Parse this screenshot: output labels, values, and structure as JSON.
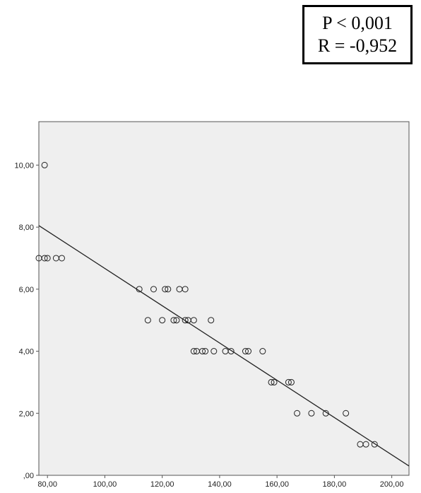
{
  "stats": {
    "p_line": "P < 0,001",
    "r_line": "R = -0,952"
  },
  "chart_data": {
    "type": "scatter",
    "title": "",
    "xlabel": "",
    "ylabel": "",
    "xlim": [
      77,
      206
    ],
    "ylim": [
      0,
      11.4
    ],
    "grid": false,
    "legend": "none",
    "x_ticks": [
      {
        "value": 80,
        "label": "80,00"
      },
      {
        "value": 100,
        "label": "100,00"
      },
      {
        "value": 120,
        "label": "120,00"
      },
      {
        "value": 140,
        "label": "140,00"
      },
      {
        "value": 160,
        "label": "160,00"
      },
      {
        "value": 180,
        "label": "180,00"
      },
      {
        "value": 200,
        "label": "200,00"
      }
    ],
    "y_ticks": [
      {
        "value": 0,
        "label": ",00"
      },
      {
        "value": 2,
        "label": "2,00"
      },
      {
        "value": 4,
        "label": "4,00"
      },
      {
        "value": 6,
        "label": "6,00"
      },
      {
        "value": 8,
        "label": "8,00"
      },
      {
        "value": 10,
        "label": "10,00"
      }
    ],
    "points": [
      {
        "x": 79,
        "y": 10
      },
      {
        "x": 77,
        "y": 7
      },
      {
        "x": 79,
        "y": 7
      },
      {
        "x": 80,
        "y": 7
      },
      {
        "x": 83,
        "y": 7
      },
      {
        "x": 85,
        "y": 7
      },
      {
        "x": 112,
        "y": 6
      },
      {
        "x": 117,
        "y": 6
      },
      {
        "x": 121,
        "y": 6
      },
      {
        "x": 122,
        "y": 6
      },
      {
        "x": 126,
        "y": 6
      },
      {
        "x": 128,
        "y": 6
      },
      {
        "x": 115,
        "y": 5
      },
      {
        "x": 120,
        "y": 5
      },
      {
        "x": 124,
        "y": 5
      },
      {
        "x": 125,
        "y": 5
      },
      {
        "x": 128,
        "y": 5
      },
      {
        "x": 129,
        "y": 5
      },
      {
        "x": 131,
        "y": 5
      },
      {
        "x": 137,
        "y": 5
      },
      {
        "x": 131,
        "y": 4
      },
      {
        "x": 132,
        "y": 4
      },
      {
        "x": 134,
        "y": 4
      },
      {
        "x": 135,
        "y": 4
      },
      {
        "x": 138,
        "y": 4
      },
      {
        "x": 142,
        "y": 4
      },
      {
        "x": 144,
        "y": 4
      },
      {
        "x": 149,
        "y": 4
      },
      {
        "x": 150,
        "y": 4
      },
      {
        "x": 155,
        "y": 4
      },
      {
        "x": 158,
        "y": 3
      },
      {
        "x": 159,
        "y": 3
      },
      {
        "x": 164,
        "y": 3
      },
      {
        "x": 165,
        "y": 3
      },
      {
        "x": 167,
        "y": 2
      },
      {
        "x": 172,
        "y": 2
      },
      {
        "x": 177,
        "y": 2
      },
      {
        "x": 184,
        "y": 2
      },
      {
        "x": 189,
        "y": 1
      },
      {
        "x": 191,
        "y": 1
      },
      {
        "x": 194,
        "y": 1
      }
    ],
    "fit_line": {
      "x": [
        77,
        206
      ],
      "y": [
        8.05,
        0.3
      ]
    }
  }
}
